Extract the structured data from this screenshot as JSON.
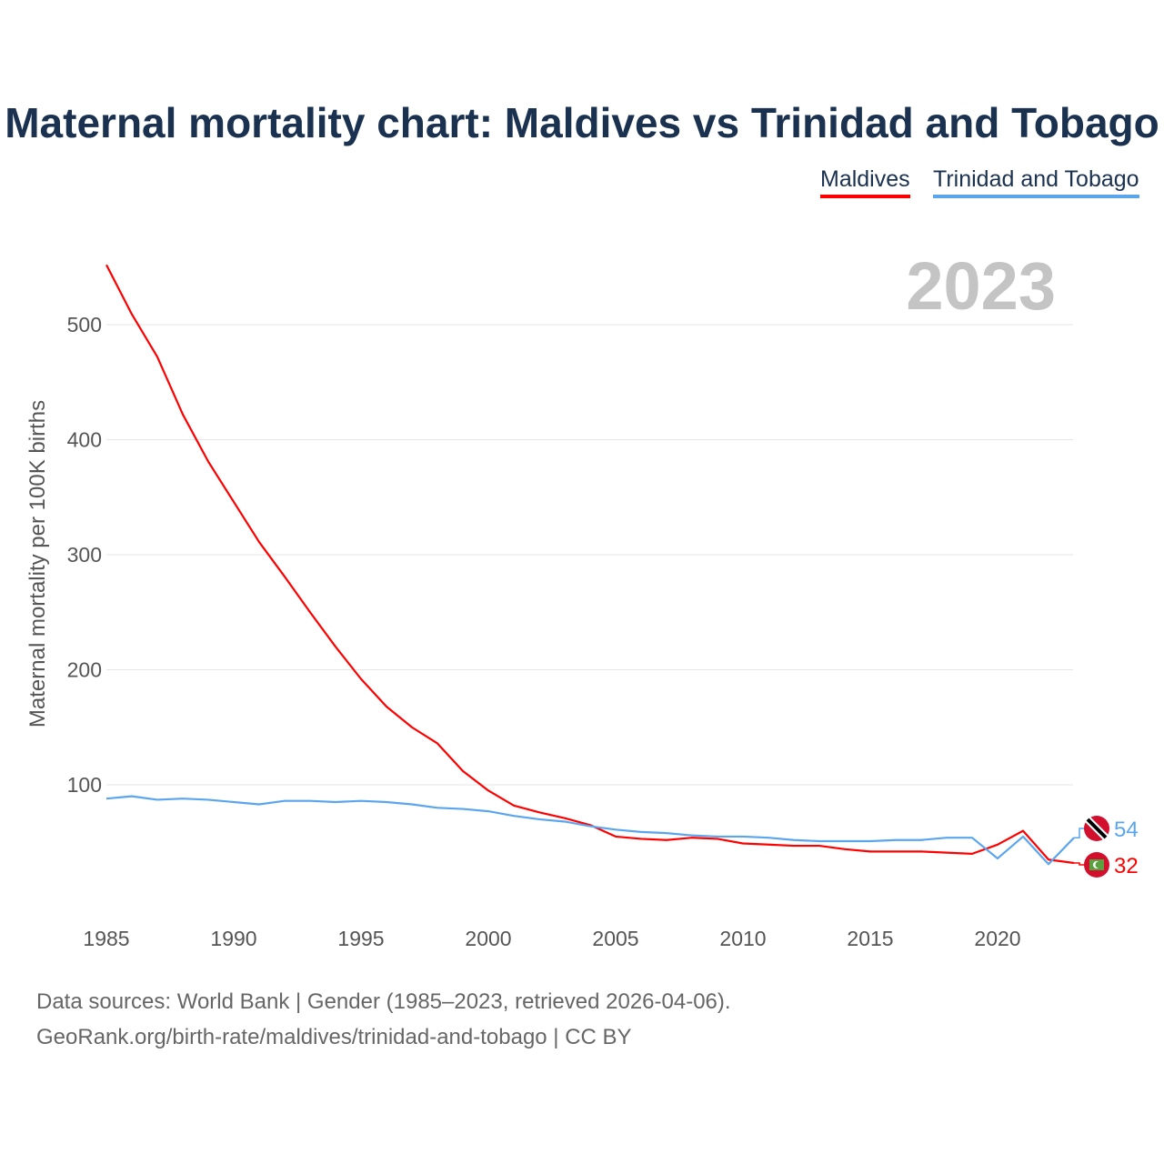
{
  "chart_data": {
    "type": "line",
    "title": "Maternal mortality chart: Maldives vs Trinidad and Tobago",
    "year_label": "2023",
    "xlabel": "",
    "ylabel": "Maternal mortality per 100K births",
    "xlim": [
      1985,
      2023
    ],
    "ylim": [
      0,
      560
    ],
    "x_ticks": [
      "1985",
      "1990",
      "1995",
      "2000",
      "2005",
      "2010",
      "2015",
      "2020"
    ],
    "y_ticks": [
      "100",
      "200",
      "300",
      "400",
      "500"
    ],
    "grid": true,
    "legend_position": "top-right",
    "x": [
      1985,
      1986,
      1987,
      1988,
      1989,
      1990,
      1991,
      1992,
      1993,
      1994,
      1995,
      1996,
      1997,
      1998,
      1999,
      2000,
      2001,
      2002,
      2003,
      2004,
      2005,
      2006,
      2007,
      2008,
      2009,
      2010,
      2011,
      2012,
      2013,
      2014,
      2015,
      2016,
      2017,
      2018,
      2019,
      2020,
      2021,
      2022,
      2023
    ],
    "series": [
      {
        "name": "Maldives",
        "color": "#ff0000",
        "end_label": "32",
        "flag": "maldives-flag",
        "values": [
          552,
          509,
          472,
          422,
          381,
          346,
          311,
          281,
          250,
          220,
          192,
          168,
          150,
          136,
          112,
          95,
          82,
          76,
          71,
          65,
          55,
          53,
          52,
          54,
          53,
          49,
          48,
          47,
          47,
          44,
          42,
          42,
          42,
          41,
          40,
          48,
          60,
          35,
          32
        ]
      },
      {
        "name": "Trinidad and Tobago",
        "color": "#5aa5ee",
        "end_label": "54",
        "flag": "trinidad-flag",
        "values": [
          88,
          90,
          87,
          88,
          87,
          85,
          83,
          86,
          86,
          85,
          86,
          85,
          83,
          80,
          79,
          77,
          73,
          70,
          68,
          64,
          61,
          59,
          58,
          56,
          55,
          55,
          54,
          52,
          51,
          51,
          51,
          52,
          52,
          54,
          54,
          36,
          55,
          31,
          54
        ]
      }
    ]
  },
  "footer": {
    "line1": "Data sources: World Bank | Gender (1985–2023, retrieved 2026-04-06).",
    "line2": "GeoRank.org/birth-rate/maldives/trinidad-and-tobago | CC BY"
  }
}
